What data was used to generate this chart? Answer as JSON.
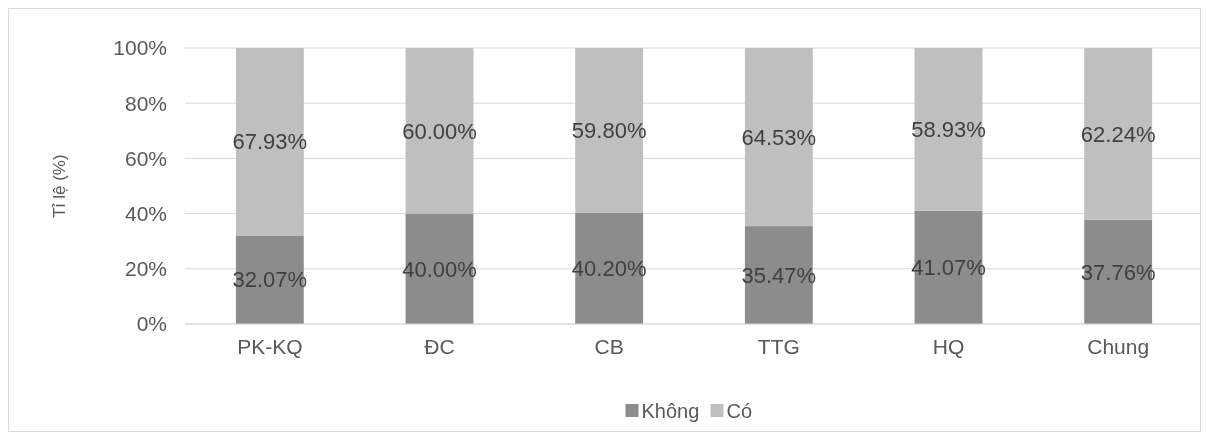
{
  "chart_data": {
    "type": "bar",
    "stacked": true,
    "ylabel": "Tỉ lệ (%)",
    "categories": [
      "PK-KQ",
      "ĐC",
      "CB",
      "TTG",
      "HQ",
      "Chung"
    ],
    "series": [
      {
        "name": "Không",
        "color": "#8c8c8c",
        "values": [
          32.07,
          40.0,
          40.2,
          35.47,
          41.07,
          37.76
        ],
        "value_labels": [
          "32.07%",
          "40.00%",
          "40.20%",
          "35.47%",
          "41.07%",
          "37.76%"
        ]
      },
      {
        "name": "Có",
        "color": "#bfbfbf",
        "values": [
          67.93,
          60.0,
          59.8,
          64.53,
          58.93,
          62.24
        ],
        "value_labels": [
          "67.93%",
          "60.00%",
          "59.80%",
          "64.53%",
          "58.93%",
          "62.24%"
        ]
      }
    ],
    "ylim": [
      0,
      100
    ],
    "yticks": [
      {
        "value": 0,
        "label": "0%"
      },
      {
        "value": 20,
        "label": "20%"
      },
      {
        "value": 40,
        "label": "40%"
      },
      {
        "value": 60,
        "label": "60%"
      },
      {
        "value": 80,
        "label": "80%"
      },
      {
        "value": 100,
        "label": "100%"
      }
    ],
    "grid": "y",
    "legend": "bottom"
  }
}
